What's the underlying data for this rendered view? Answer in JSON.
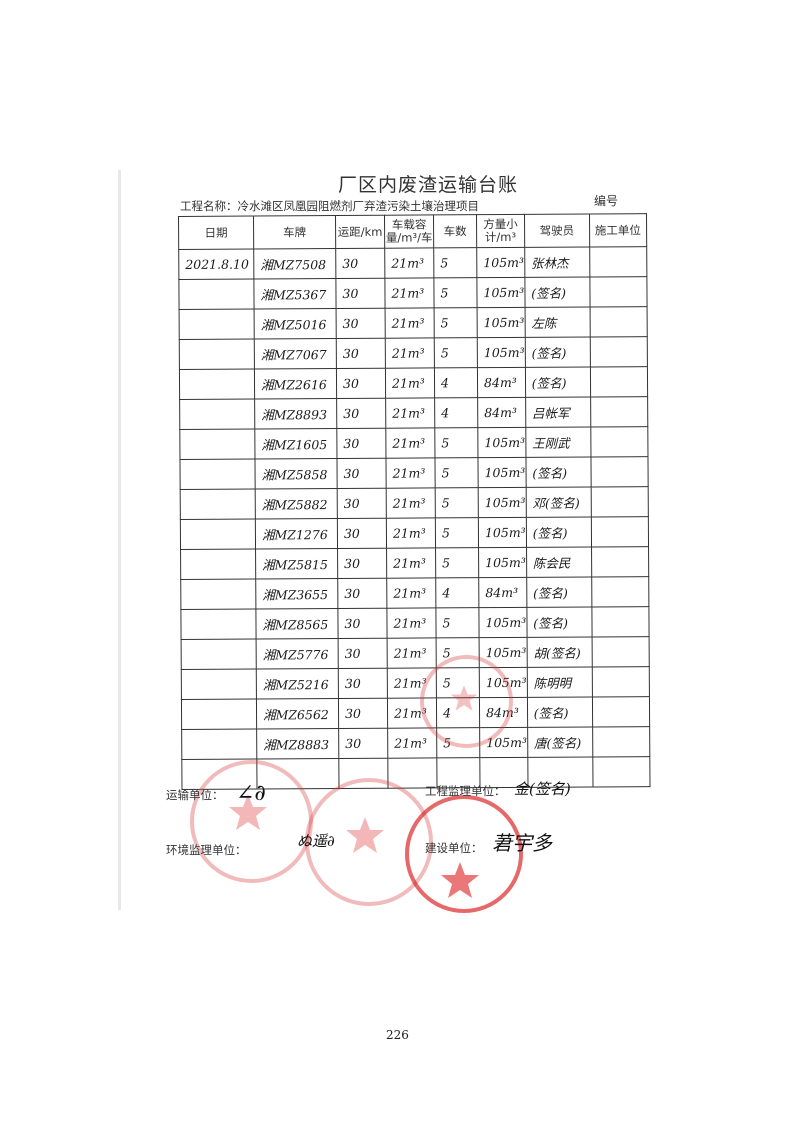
{
  "document": {
    "title": "厂区内废渣运输台账",
    "number_label": "编号",
    "project_label": "工程名称：冷水滩区凤凰园阻燃剂厂弃渣污染土壤治理项目",
    "page_number": "226"
  },
  "table": {
    "headers": [
      "日期",
      "车牌",
      "运距/km",
      "车载容量/m³/车",
      "车数",
      "方量小计/m³",
      "驾驶员",
      "施工单位"
    ],
    "rows": [
      [
        "2021.8.10",
        "湘MZ7508",
        "30",
        "21m³",
        "5",
        "105m³",
        "张林杰",
        ""
      ],
      [
        "",
        "湘MZ5367",
        "30",
        "21m³",
        "5",
        "105m³",
        "(签名)",
        ""
      ],
      [
        "",
        "湘MZ5016",
        "30",
        "21m³",
        "5",
        "105m³",
        "左陈",
        ""
      ],
      [
        "",
        "湘MZ7067",
        "30",
        "21m³",
        "5",
        "105m³",
        "(签名)",
        ""
      ],
      [
        "",
        "湘MZ2616",
        "30",
        "21m³",
        "4",
        "84m³",
        "(签名)",
        ""
      ],
      [
        "",
        "湘MZ8893",
        "30",
        "21m³",
        "4",
        "84m³",
        "吕帐军",
        ""
      ],
      [
        "",
        "湘MZ1605",
        "30",
        "21m³",
        "5",
        "105m³",
        "王刚武",
        ""
      ],
      [
        "",
        "湘MZ5858",
        "30",
        "21m³",
        "5",
        "105m³",
        "(签名)",
        ""
      ],
      [
        "",
        "湘MZ5882",
        "30",
        "21m³",
        "5",
        "105m³",
        "邓(签名)",
        ""
      ],
      [
        "",
        "湘MZ1276",
        "30",
        "21m³",
        "5",
        "105m³",
        "(签名)",
        ""
      ],
      [
        "",
        "湘MZ5815",
        "30",
        "21m³",
        "5",
        "105m³",
        "陈会民",
        ""
      ],
      [
        "",
        "湘MZ3655",
        "30",
        "21m³",
        "4",
        "84m³",
        "(签名)",
        ""
      ],
      [
        "",
        "湘MZ8565",
        "30",
        "21m³",
        "5",
        "105m³",
        "(签名)",
        ""
      ],
      [
        "",
        "湘MZ5776",
        "30",
        "21m³",
        "5",
        "105m³",
        "胡(签名)",
        ""
      ],
      [
        "",
        "湘MZ5216",
        "30",
        "21m³",
        "5",
        "105m³",
        "陈明明",
        ""
      ],
      [
        "",
        "湘MZ6562",
        "30",
        "21m³",
        "4",
        "84m³",
        "(签名)",
        ""
      ],
      [
        "",
        "湘MZ8883",
        "30",
        "21m³",
        "5",
        "105m³",
        "唐(签名)",
        ""
      ],
      [
        "",
        "",
        "",
        "",
        "",
        "",
        "",
        ""
      ]
    ]
  },
  "signatures": {
    "transport_label": "运输单位：",
    "supervision_label": "工程监理单位：",
    "supervision_sign": "金(签名)",
    "env_supervision_label": "环境监理单位：",
    "construction_label": "建设单位：",
    "stamp_color": "#d83c3c"
  }
}
